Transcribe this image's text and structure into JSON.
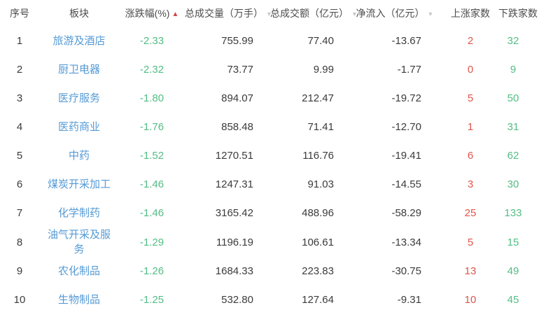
{
  "table": {
    "headers": [
      {
        "label": "序号"
      },
      {
        "label": "板块"
      },
      {
        "label": "涨跌幅(%)",
        "sort": "▲"
      },
      {
        "label": "总成交量（万手）",
        "sort": "▼"
      },
      {
        "label": "总成交额（亿元）",
        "sort": "▼"
      },
      {
        "label": "净流入（亿元）",
        "sort": "▼"
      },
      {
        "label": "上涨家数"
      },
      {
        "label": "下跌家数"
      }
    ],
    "rows": [
      {
        "idx": "1",
        "sector": "旅游及酒店",
        "change": "-2.33",
        "volume": "755.99",
        "turnover": "77.40",
        "net": "-13.67",
        "up": "2",
        "down": "32"
      },
      {
        "idx": "2",
        "sector": "厨卫电器",
        "change": "-2.32",
        "volume": "73.77",
        "turnover": "9.99",
        "net": "-1.77",
        "up": "0",
        "down": "9"
      },
      {
        "idx": "3",
        "sector": "医疗服务",
        "change": "-1.80",
        "volume": "894.07",
        "turnover": "212.47",
        "net": "-19.72",
        "up": "5",
        "down": "50"
      },
      {
        "idx": "4",
        "sector": "医药商业",
        "change": "-1.76",
        "volume": "858.48",
        "turnover": "71.41",
        "net": "-12.70",
        "up": "1",
        "down": "31"
      },
      {
        "idx": "5",
        "sector": "中药",
        "change": "-1.52",
        "volume": "1270.51",
        "turnover": "116.76",
        "net": "-19.41",
        "up": "6",
        "down": "62"
      },
      {
        "idx": "6",
        "sector": "煤炭开采加工",
        "change": "-1.46",
        "volume": "1247.31",
        "turnover": "91.03",
        "net": "-14.55",
        "up": "3",
        "down": "30"
      },
      {
        "idx": "7",
        "sector": "化学制药",
        "change": "-1.46",
        "volume": "3165.42",
        "turnover": "488.96",
        "net": "-58.29",
        "up": "25",
        "down": "133"
      },
      {
        "idx": "8",
        "sector": "油气开采及服务",
        "change": "-1.29",
        "volume": "1196.19",
        "turnover": "106.61",
        "net": "-13.34",
        "up": "5",
        "down": "15"
      },
      {
        "idx": "9",
        "sector": "农化制品",
        "change": "-1.26",
        "volume": "1684.33",
        "turnover": "223.83",
        "net": "-30.75",
        "up": "13",
        "down": "49"
      },
      {
        "idx": "10",
        "sector": "生物制品",
        "change": "-1.25",
        "volume": "532.80",
        "turnover": "127.64",
        "net": "-9.31",
        "up": "10",
        "down": "45"
      }
    ]
  },
  "colors": {
    "sector_link_blue": "#549ad5",
    "decline_green": "#53bd85",
    "advance_red": "#e0544a",
    "active_sort_red": "#ce4643",
    "inactive_sort_gray": "#c9c9c9",
    "text_dark": "#3b3b3b",
    "header_gray": "#4c4c4c"
  }
}
